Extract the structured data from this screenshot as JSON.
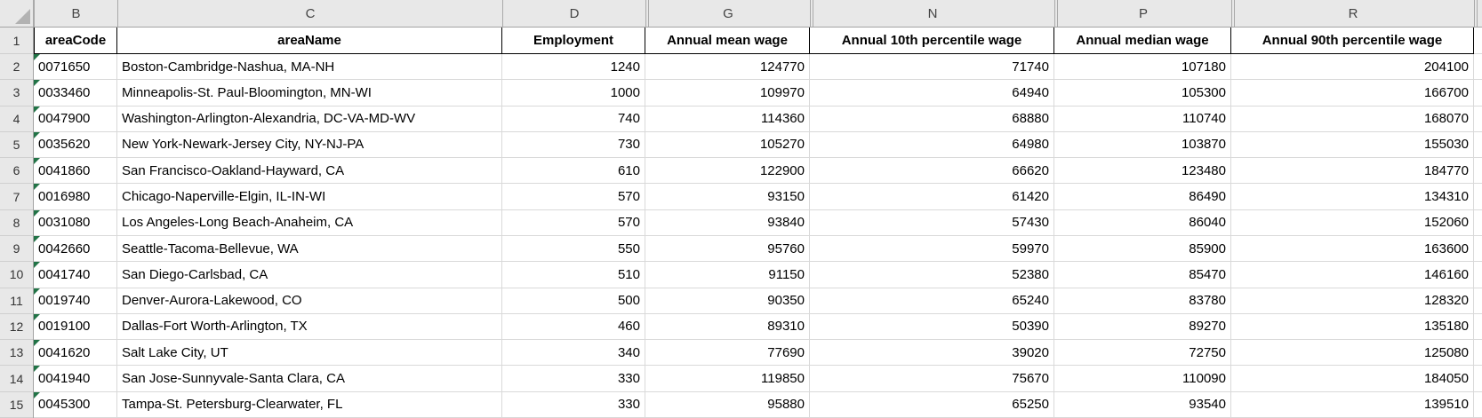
{
  "spreadsheet": {
    "app": "excel-worksheet",
    "header_row_number": "1",
    "columns": [
      {
        "letter": "B",
        "header": "areaCode",
        "gap_before": false
      },
      {
        "letter": "C",
        "header": "areaName",
        "gap_before": false
      },
      {
        "letter": "D",
        "header": "Employment",
        "gap_before": false
      },
      {
        "letter": "G",
        "header": "Annual mean wage",
        "gap_before": true
      },
      {
        "letter": "N",
        "header": "Annual 10th percentile wage",
        "gap_before": true
      },
      {
        "letter": "P",
        "header": "Annual median wage",
        "gap_before": true
      },
      {
        "letter": "R",
        "header": "Annual 90th percentile wage",
        "gap_before": true
      }
    ],
    "trailing_partial_column": {
      "gap_before": true,
      "letter": ""
    },
    "rows": [
      {
        "n": "2",
        "cells": [
          "0071650",
          "Boston-Cambridge-Nashua, MA-NH",
          "1240",
          "124770",
          "71740",
          "107180",
          "204100"
        ]
      },
      {
        "n": "3",
        "cells": [
          "0033460",
          "Minneapolis-St. Paul-Bloomington, MN-WI",
          "1000",
          "109970",
          "64940",
          "105300",
          "166700"
        ]
      },
      {
        "n": "4",
        "cells": [
          "0047900",
          "Washington-Arlington-Alexandria, DC-VA-MD-WV",
          "740",
          "114360",
          "68880",
          "110740",
          "168070"
        ]
      },
      {
        "n": "5",
        "cells": [
          "0035620",
          "New York-Newark-Jersey City, NY-NJ-PA",
          "730",
          "105270",
          "64980",
          "103870",
          "155030"
        ]
      },
      {
        "n": "6",
        "cells": [
          "0041860",
          "San Francisco-Oakland-Hayward, CA",
          "610",
          "122900",
          "66620",
          "123480",
          "184770"
        ]
      },
      {
        "n": "7",
        "cells": [
          "0016980",
          "Chicago-Naperville-Elgin, IL-IN-WI",
          "570",
          "93150",
          "61420",
          "86490",
          "134310"
        ]
      },
      {
        "n": "8",
        "cells": [
          "0031080",
          "Los Angeles-Long Beach-Anaheim, CA",
          "570",
          "93840",
          "57430",
          "86040",
          "152060"
        ]
      },
      {
        "n": "9",
        "cells": [
          "0042660",
          "Seattle-Tacoma-Bellevue, WA",
          "550",
          "95760",
          "59970",
          "85900",
          "163600"
        ]
      },
      {
        "n": "10",
        "cells": [
          "0041740",
          "San Diego-Carlsbad, CA",
          "510",
          "91150",
          "52380",
          "85470",
          "146160"
        ]
      },
      {
        "n": "11",
        "cells": [
          "0019740",
          "Denver-Aurora-Lakewood, CO",
          "500",
          "90350",
          "65240",
          "83780",
          "128320"
        ]
      },
      {
        "n": "12",
        "cells": [
          "0019100",
          "Dallas-Fort Worth-Arlington, TX",
          "460",
          "89310",
          "50390",
          "89270",
          "135180"
        ]
      },
      {
        "n": "13",
        "cells": [
          "0041620",
          "Salt Lake City, UT",
          "340",
          "77690",
          "39020",
          "72750",
          "125080"
        ]
      },
      {
        "n": "14",
        "cells": [
          "0041940",
          "San Jose-Sunnyvale-Santa Clara, CA",
          "330",
          "119850",
          "75670",
          "110090",
          "184050"
        ]
      },
      {
        "n": "15",
        "cells": [
          "0045300",
          "Tampa-St. Petersburg-Clearwater, FL",
          "330",
          "95880",
          "65250",
          "93540",
          "139510"
        ]
      }
    ],
    "flagged_column": "areaCode",
    "colors": {
      "flag_green": "#217346",
      "header_bg": "#e8e8e8",
      "grid_line": "#d9d9d9",
      "chrome_line": "#a9a9a9",
      "header_border": "#000000"
    }
  }
}
